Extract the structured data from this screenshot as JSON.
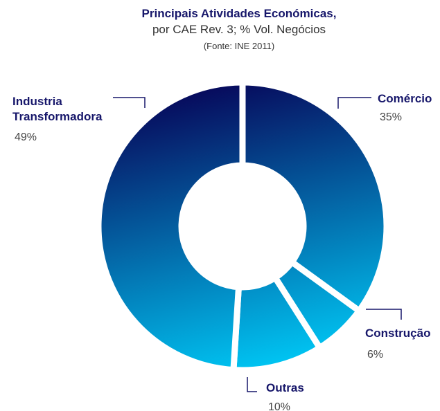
{
  "chart_data": {
    "type": "donut",
    "title": "Principais Atividades Económicas,",
    "subtitle": "por CAE Rev. 3; % Vol. Negócios",
    "note": "(Fonte: INE 2011)",
    "categories": [
      "Comércio",
      "Construção",
      "Outras",
      "Industria Transformadora"
    ],
    "values": [
      35,
      6,
      10,
      49
    ],
    "value_labels": [
      "35%",
      "6%",
      "10%",
      "49%"
    ],
    "gradient": [
      "#07075a",
      "#00c8f5"
    ]
  }
}
